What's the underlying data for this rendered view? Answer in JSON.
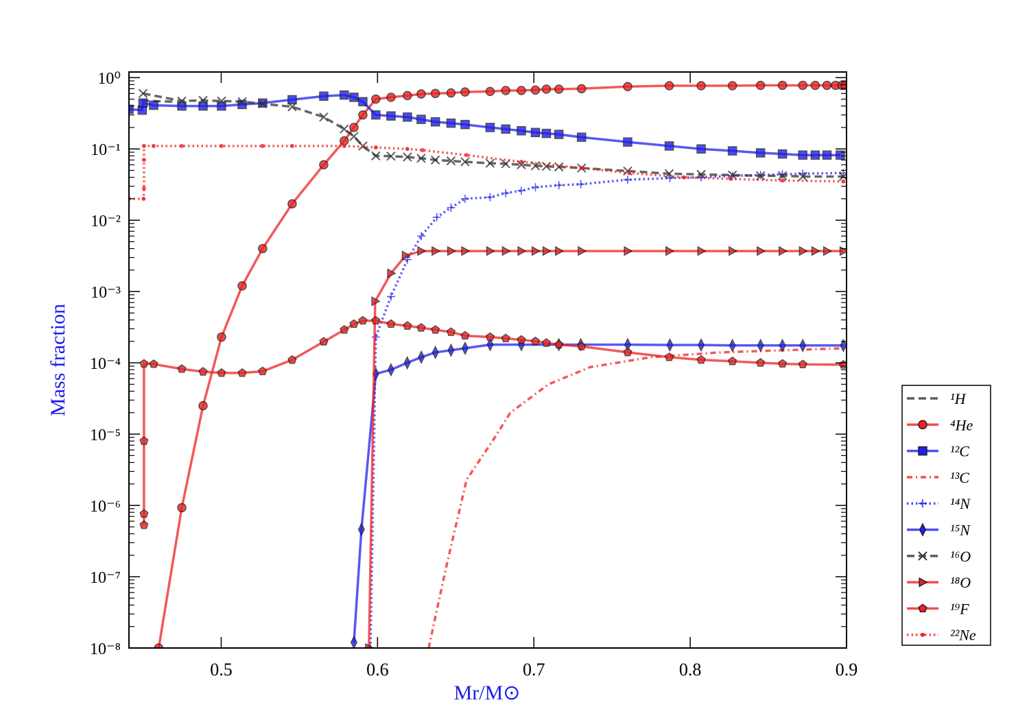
{
  "chart_data": {
    "type": "line",
    "xlabel": "Mr/M⊙",
    "ylabel": "Mass fraction",
    "label_color": "#1a1aee",
    "xlim": [
      0.441,
      0.9
    ],
    "ylim": [
      1e-08,
      1.2
    ],
    "ylog": true,
    "xticks": [
      0.5,
      0.6,
      0.7,
      0.8,
      0.9
    ],
    "yticks": [
      {
        "value": 1,
        "label": "10⁰"
      },
      {
        "value": 0.1,
        "label": "10⁻¹"
      },
      {
        "value": 0.01,
        "label": "10⁻²"
      },
      {
        "value": 0.001,
        "label": "10⁻³"
      },
      {
        "value": 0.0001,
        "label": "10⁻⁴"
      },
      {
        "value": 1e-05,
        "label": "10⁻⁵"
      },
      {
        "value": 1e-06,
        "label": "10⁻⁶"
      },
      {
        "value": 1e-07,
        "label": "10⁻⁷"
      },
      {
        "value": 1e-08,
        "label": "10⁻⁸"
      }
    ],
    "legend": "right",
    "series": [
      {
        "name": "¹H",
        "color": "#333333",
        "dash": "dashed",
        "marker": "none",
        "x": [
          0.449,
          0.455,
          0.47
        ],
        "values": [
          0.48,
          0.47,
          0.46
        ]
      },
      {
        "name": "⁴He",
        "color": "#f02020",
        "dash": "solid",
        "marker": "o",
        "x": [
          0.46,
          0.4748,
          0.4884,
          0.5002,
          0.5134,
          0.5265,
          0.5454,
          0.5656,
          0.5787,
          0.5849,
          0.5906,
          0.5989,
          0.6086,
          0.6191,
          0.6279,
          0.637,
          0.647,
          0.656,
          0.672,
          0.682,
          0.692,
          0.701,
          0.708,
          0.716,
          0.7305,
          0.76,
          0.7866,
          0.807,
          0.827,
          0.845,
          0.859,
          0.872,
          0.88,
          0.8875,
          0.893,
          0.897,
          0.899
        ],
        "values": [
          1e-08,
          9.3e-07,
          2.5e-05,
          0.00023,
          0.0012,
          0.004,
          0.017,
          0.06,
          0.13,
          0.2,
          0.3,
          0.5,
          0.53,
          0.56,
          0.59,
          0.6,
          0.61,
          0.63,
          0.64,
          0.66,
          0.66,
          0.67,
          0.69,
          0.69,
          0.7,
          0.75,
          0.77,
          0.77,
          0.77,
          0.78,
          0.78,
          0.78,
          0.78,
          0.78,
          0.78,
          0.78,
          0.78
        ]
      },
      {
        "name": "¹²C",
        "color": "#2020f0",
        "dash": "solid",
        "marker": "s",
        "x": [
          0.441,
          0.4495,
          0.45,
          0.4568,
          0.4748,
          0.4884,
          0.5002,
          0.5134,
          0.5265,
          0.5454,
          0.5656,
          0.5787,
          0.5849,
          0.5906,
          0.5989,
          0.6086,
          0.6191,
          0.6279,
          0.637,
          0.647,
          0.656,
          0.672,
          0.682,
          0.692,
          0.701,
          0.708,
          0.716,
          0.7305,
          0.76,
          0.7866,
          0.807,
          0.827,
          0.845,
          0.859,
          0.872,
          0.88,
          0.8875,
          0.896
        ],
        "values": [
          0.36,
          0.35,
          0.44,
          0.41,
          0.4,
          0.4,
          0.4,
          0.42,
          0.44,
          0.49,
          0.55,
          0.57,
          0.53,
          0.46,
          0.3,
          0.29,
          0.28,
          0.26,
          0.24,
          0.23,
          0.22,
          0.2,
          0.19,
          0.18,
          0.17,
          0.165,
          0.16,
          0.146,
          0.125,
          0.11,
          0.1,
          0.094,
          0.088,
          0.085,
          0.082,
          0.082,
          0.082,
          0.082
        ]
      },
      {
        "name": "¹³C",
        "color": "#f02020",
        "dash": "dashdot",
        "marker": "none",
        "x": [
          0.6327,
          0.6437,
          0.657,
          0.6743,
          0.685,
          0.7094,
          0.736,
          0.775,
          0.819,
          0.898
        ],
        "values": [
          1e-08,
          1.3e-07,
          2.3e-06,
          8.5e-06,
          2e-05,
          5e-05,
          8.7e-05,
          0.00012,
          0.00014,
          0.00016
        ]
      },
      {
        "name": "¹⁴N",
        "color": "#2020f0",
        "dash": "dotted",
        "marker": "+",
        "x": [
          0.5955,
          0.5989,
          0.6086,
          0.6191,
          0.628,
          0.6379,
          0.647,
          0.656,
          0.672,
          0.682,
          0.692,
          0.701,
          0.716,
          0.73,
          0.76,
          0.787,
          0.807,
          0.827,
          0.845,
          0.859,
          0.872,
          0.898
        ],
        "values": [
          1e-08,
          0.00023,
          0.00085,
          0.0028,
          0.006,
          0.011,
          0.015,
          0.02,
          0.021,
          0.024,
          0.026,
          0.029,
          0.031,
          0.032,
          0.037,
          0.039,
          0.04,
          0.042,
          0.043,
          0.044,
          0.045,
          0.046
        ]
      },
      {
        "name": "¹⁵N",
        "color": "#2020f0",
        "dash": "solid",
        "marker": "d",
        "x": [
          0.5849,
          0.5897,
          0.5989,
          0.6086,
          0.619,
          0.628,
          0.637,
          0.647,
          0.656,
          0.672,
          0.692,
          0.716,
          0.73,
          0.76,
          0.787,
          0.807,
          0.827,
          0.845,
          0.859,
          0.872,
          0.898
        ],
        "values": [
          1.2e-08,
          4.6e-07,
          7e-05,
          8e-05,
          0.0001,
          0.00012,
          0.00014,
          0.00015,
          0.00016,
          0.00018,
          0.00018,
          0.00018,
          0.00018,
          0.00018,
          0.000178,
          0.000178,
          0.000175,
          0.000175,
          0.000175,
          0.000175,
          0.000175
        ]
      },
      {
        "name": "¹⁶O",
        "color": "#333333",
        "dash": "dashed",
        "marker": "x",
        "x": [
          0.45,
          0.4748,
          0.4884,
          0.5002,
          0.5134,
          0.5265,
          0.5454,
          0.5656,
          0.5787,
          0.5849,
          0.5906,
          0.5989,
          0.6086,
          0.6191,
          0.6279,
          0.637,
          0.647,
          0.656,
          0.672,
          0.682,
          0.692,
          0.701,
          0.708,
          0.716,
          0.7305,
          0.76,
          0.7866,
          0.807,
          0.827,
          0.845,
          0.859,
          0.872,
          0.898
        ],
        "values": [
          0.6,
          0.47,
          0.48,
          0.47,
          0.46,
          0.43,
          0.39,
          0.28,
          0.19,
          0.15,
          0.11,
          0.08,
          0.079,
          0.077,
          0.074,
          0.07,
          0.068,
          0.066,
          0.063,
          0.062,
          0.06,
          0.058,
          0.057,
          0.056,
          0.054,
          0.049,
          0.045,
          0.044,
          0.043,
          0.042,
          0.042,
          0.041,
          0.041
        ]
      },
      {
        "name": "¹⁸O",
        "color": "#f02020",
        "dash": "solid",
        "marker": ">",
        "x": [
          0.5945,
          0.5985,
          0.6086,
          0.618,
          0.6279,
          0.637,
          0.647,
          0.656,
          0.672,
          0.682,
          0.692,
          0.701,
          0.708,
          0.716,
          0.7305,
          0.76,
          0.7866,
          0.807,
          0.827,
          0.845,
          0.859,
          0.872,
          0.88,
          0.8875,
          0.898
        ],
        "values": [
          1e-08,
          0.00073,
          0.0018,
          0.0032,
          0.0037,
          0.0037,
          0.0037,
          0.0037,
          0.0037,
          0.0037,
          0.0037,
          0.0037,
          0.0037,
          0.0037,
          0.0037,
          0.0037,
          0.0037,
          0.0037,
          0.0037,
          0.0037,
          0.0037,
          0.0037,
          0.0037,
          0.0037,
          0.0037
        ]
      },
      {
        "name": "¹⁹F",
        "color": "#f02020",
        "dash": "solid",
        "marker": "p",
        "x": [
          0.4506,
          0.4506,
          0.4506,
          0.4506,
          0.4568,
          0.4748,
          0.4884,
          0.5002,
          0.5134,
          0.5265,
          0.5454,
          0.5656,
          0.5787,
          0.5849,
          0.5906,
          0.5989,
          0.6086,
          0.6191,
          0.6279,
          0.637,
          0.647,
          0.656,
          0.672,
          0.682,
          0.692,
          0.701,
          0.708,
          0.716,
          0.7305,
          0.76,
          0.7866,
          0.807,
          0.827,
          0.845,
          0.859,
          0.872,
          0.898
        ],
        "values": [
          5.3e-07,
          7.6e-07,
          8e-06,
          9.7e-05,
          9.6e-05,
          8.2e-05,
          7.5e-05,
          7.2e-05,
          7.2e-05,
          7.6e-05,
          0.00011,
          0.000198,
          0.00029,
          0.00035,
          0.00039,
          0.00039,
          0.00035,
          0.00033,
          0.00031,
          0.00029,
          0.00027,
          0.00024,
          0.00023,
          0.00022,
          0.00021,
          0.0002,
          0.00019,
          0.00018,
          0.00017,
          0.00014,
          0.00012,
          0.00011,
          0.000105,
          0.0001,
          9.7e-05,
          9.5e-05,
          9.4e-05
        ]
      },
      {
        "name": "²²Ne",
        "color": "#f02020",
        "dash": "dotted",
        "marker": ".",
        "x": [
          0.441,
          0.4504,
          0.4506,
          0.4506,
          0.4506,
          0.4568,
          0.4748,
          0.5002,
          0.5265,
          0.5454,
          0.5787,
          0.5989,
          0.6191,
          0.6288,
          0.657,
          0.692,
          0.7305,
          0.761,
          0.796,
          0.826,
          0.859,
          0.898
        ],
        "values": [
          0.02,
          0.02,
          0.028,
          0.07,
          0.11,
          0.11,
          0.11,
          0.11,
          0.11,
          0.11,
          0.11,
          0.105,
          0.1,
          0.096,
          0.082,
          0.066,
          0.054,
          0.046,
          0.04,
          0.038,
          0.036,
          0.035
        ]
      }
    ]
  }
}
